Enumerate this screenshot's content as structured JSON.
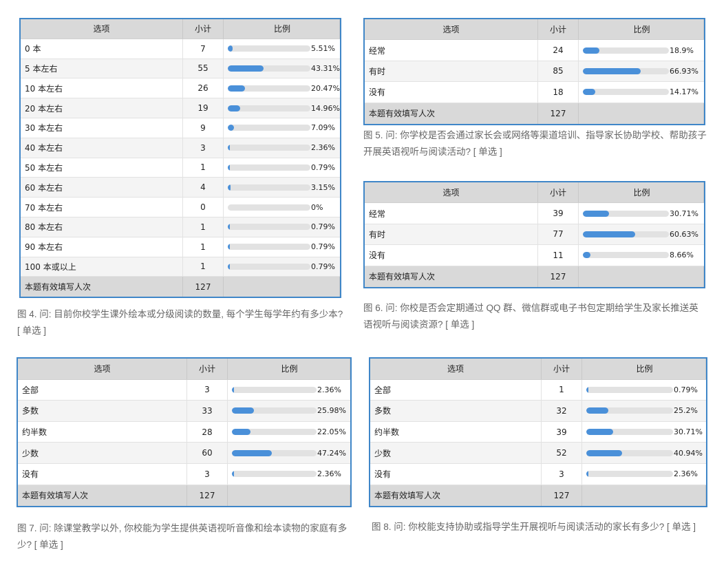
{
  "header_labels": {
    "option": "选项",
    "count": "小计",
    "ratio": "比例"
  },
  "footer_label": "本题有效填写人次",
  "tables": [
    {
      "id": "fig4",
      "rows": [
        {
          "option": "0 本",
          "count": "7",
          "percent": "5.51%",
          "value": 0.0551
        },
        {
          "option": "5 本左右",
          "count": "55",
          "percent": "43.31%",
          "value": 0.4331
        },
        {
          "option": "10 本左右",
          "count": "26",
          "percent": "20.47%",
          "value": 0.2047
        },
        {
          "option": "20 本左右",
          "count": "19",
          "percent": "14.96%",
          "value": 0.1496
        },
        {
          "option": "30 本左右",
          "count": "9",
          "percent": "7.09%",
          "value": 0.0709
        },
        {
          "option": "40 本左右",
          "count": "3",
          "percent": "2.36%",
          "value": 0.0236
        },
        {
          "option": "50 本左右",
          "count": "1",
          "percent": "0.79%",
          "value": 0.0079
        },
        {
          "option": "60 本左右",
          "count": "4",
          "percent": "3.15%",
          "value": 0.0315
        },
        {
          "option": "70 本左右",
          "count": "0",
          "percent": "0%",
          "value": 0
        },
        {
          "option": "80 本左右",
          "count": "1",
          "percent": "0.79%",
          "value": 0.0079
        },
        {
          "option": "90 本左右",
          "count": "1",
          "percent": "0.79%",
          "value": 0.0079
        },
        {
          "option": "100 本或以上",
          "count": "1",
          "percent": "0.79%",
          "value": 0.0079
        }
      ],
      "total": "127",
      "caption": "图 4. 问: 目前你校学生课外绘本或分级阅读的数量, 每个学生每学年约有多少本?  [ 单选 ]"
    },
    {
      "id": "fig5",
      "rows": [
        {
          "option": "经常",
          "count": "24",
          "percent": "18.9%",
          "value": 0.189
        },
        {
          "option": "有时",
          "count": "85",
          "percent": "66.93%",
          "value": 0.6693
        },
        {
          "option": "没有",
          "count": "18",
          "percent": "14.17%",
          "value": 0.1417
        }
      ],
      "total": "127",
      "caption": "图 5. 问: 你学校是否会通过家长会或网络等渠道培训、指导家长协助学校、帮助孩子开展英语视听与阅读活动? [ 单选 ]"
    },
    {
      "id": "fig6",
      "rows": [
        {
          "option": "经常",
          "count": "39",
          "percent": "30.71%",
          "value": 0.3071
        },
        {
          "option": "有时",
          "count": "77",
          "percent": "60.63%",
          "value": 0.6063
        },
        {
          "option": "没有",
          "count": "11",
          "percent": "8.66%",
          "value": 0.0866
        }
      ],
      "total": "127",
      "caption": "图 6. 问: 你校是否会定期通过 QQ 群、微信群或电子书包定期给学生及家长推送英语视听与阅读资源? [ 单选 ]"
    },
    {
      "id": "fig7",
      "rows": [
        {
          "option": "全部",
          "count": "3",
          "percent": "2.36%",
          "value": 0.0236
        },
        {
          "option": "多数",
          "count": "33",
          "percent": "25.98%",
          "value": 0.2598
        },
        {
          "option": "约半数",
          "count": "28",
          "percent": "22.05%",
          "value": 0.2205
        },
        {
          "option": "少数",
          "count": "60",
          "percent": "47.24%",
          "value": 0.4724
        },
        {
          "option": "没有",
          "count": "3",
          "percent": "2.36%",
          "value": 0.0236
        }
      ],
      "total": "127",
      "caption": "图 7. 问: 除课堂教学以外, 你校能为学生提供英语视听音像和绘本读物的家庭有多少? [ 单选 ]"
    },
    {
      "id": "fig8",
      "rows": [
        {
          "option": "全部",
          "count": "1",
          "percent": "0.79%",
          "value": 0.0079
        },
        {
          "option": "多数",
          "count": "32",
          "percent": "25.2%",
          "value": 0.252
        },
        {
          "option": "约半数",
          "count": "39",
          "percent": "30.71%",
          "value": 0.3071
        },
        {
          "option": "少数",
          "count": "52",
          "percent": "40.94%",
          "value": 0.4094
        },
        {
          "option": "没有",
          "count": "3",
          "percent": "2.36%",
          "value": 0.0236
        }
      ],
      "total": "127",
      "caption": "图 8. 问: 你校能支持协助或指导学生开展视听与阅读活动的家长有多少? [ 单选 ]"
    }
  ],
  "colors": {
    "border": "#3f86c8",
    "bar_fill": "#4a90d9",
    "bar_track": "#e2e2e2",
    "header_bg": "#d9d9d9"
  }
}
